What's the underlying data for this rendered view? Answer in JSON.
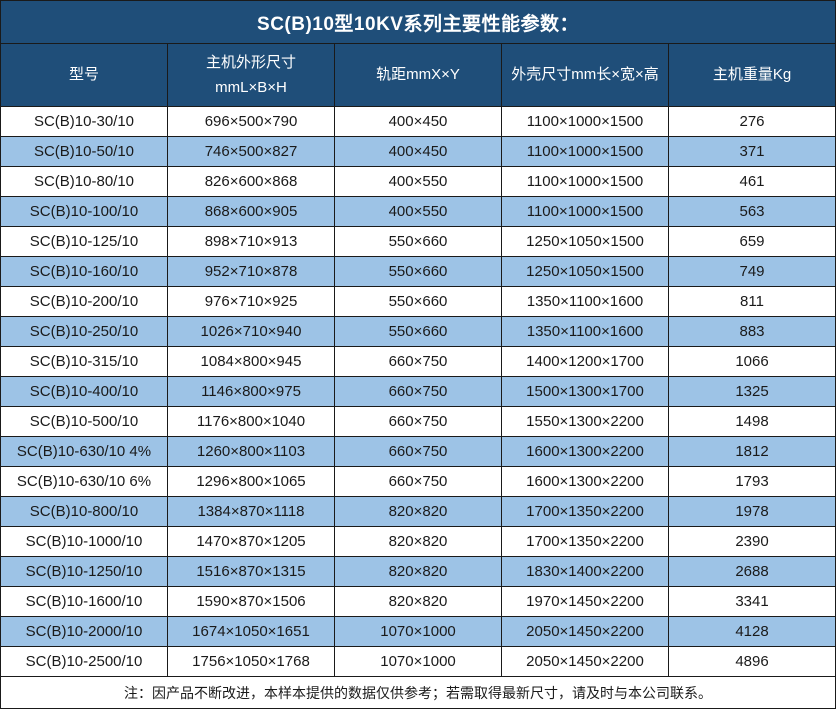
{
  "title": "SC(B)10型10KV系列主要性能参数：",
  "colors": {
    "header_bg": "#1F4E79",
    "row_alt_bg": "#9DC3E6",
    "border": "#1A1A1A",
    "header_text": "#FFFFFF",
    "body_text": "#1A1A1A"
  },
  "table": {
    "columns": [
      "型号",
      "主机外形尺寸\nmmL×B×H",
      "轨距mmX×Y",
      "外壳尺寸mm长×宽×高",
      "主机重量Kg"
    ],
    "rows": [
      [
        "SC(B)10-30/10",
        "696×500×790",
        "400×450",
        "1100×1000×1500",
        "276"
      ],
      [
        "SC(B)10-50/10",
        "746×500×827",
        "400×450",
        "1100×1000×1500",
        "371"
      ],
      [
        "SC(B)10-80/10",
        "826×600×868",
        "400×550",
        "1100×1000×1500",
        "461"
      ],
      [
        "SC(B)10-100/10",
        "868×600×905",
        "400×550",
        "1100×1000×1500",
        "563"
      ],
      [
        "SC(B)10-125/10",
        "898×710×913",
        "550×660",
        "1250×1050×1500",
        "659"
      ],
      [
        "SC(B)10-160/10",
        "952×710×878",
        "550×660",
        "1250×1050×1500",
        "749"
      ],
      [
        "SC(B)10-200/10",
        "976×710×925",
        "550×660",
        "1350×1100×1600",
        "811"
      ],
      [
        "SC(B)10-250/10",
        "1026×710×940",
        "550×660",
        "1350×1100×1600",
        "883"
      ],
      [
        "SC(B)10-315/10",
        "1084×800×945",
        "660×750",
        "1400×1200×1700",
        "1066"
      ],
      [
        "SC(B)10-400/10",
        "1146×800×975",
        "660×750",
        "1500×1300×1700",
        "1325"
      ],
      [
        "SC(B)10-500/10",
        "1176×800×1040",
        "660×750",
        "1550×1300×2200",
        "1498"
      ],
      [
        "SC(B)10-630/10 4%",
        "1260×800×1103",
        "660×750",
        "1600×1300×2200",
        "1812"
      ],
      [
        "SC(B)10-630/10 6%",
        "1296×800×1065",
        "660×750",
        "1600×1300×2200",
        "1793"
      ],
      [
        "SC(B)10-800/10",
        "1384×870×1118",
        "820×820",
        "1700×1350×2200",
        "1978"
      ],
      [
        "SC(B)10-1000/10",
        "1470×870×1205",
        "820×820",
        "1700×1350×2200",
        "2390"
      ],
      [
        "SC(B)10-1250/10",
        "1516×870×1315",
        "820×820",
        "1830×1400×2200",
        "2688"
      ],
      [
        "SC(B)10-1600/10",
        "1590×870×1506",
        "820×820",
        "1970×1450×2200",
        "3341"
      ],
      [
        "SC(B)10-2000/10",
        "1674×1050×1651",
        "1070×1000",
        "2050×1450×2200",
        "4128"
      ],
      [
        "SC(B)10-2500/10",
        "1756×1050×1768",
        "1070×1000",
        "2050×1450×2200",
        "4896"
      ]
    ]
  },
  "footer_note": "注：因产品不断改进，本样本提供的数据仅供参考；若需取得最新尺寸，请及时与本公司联系。"
}
